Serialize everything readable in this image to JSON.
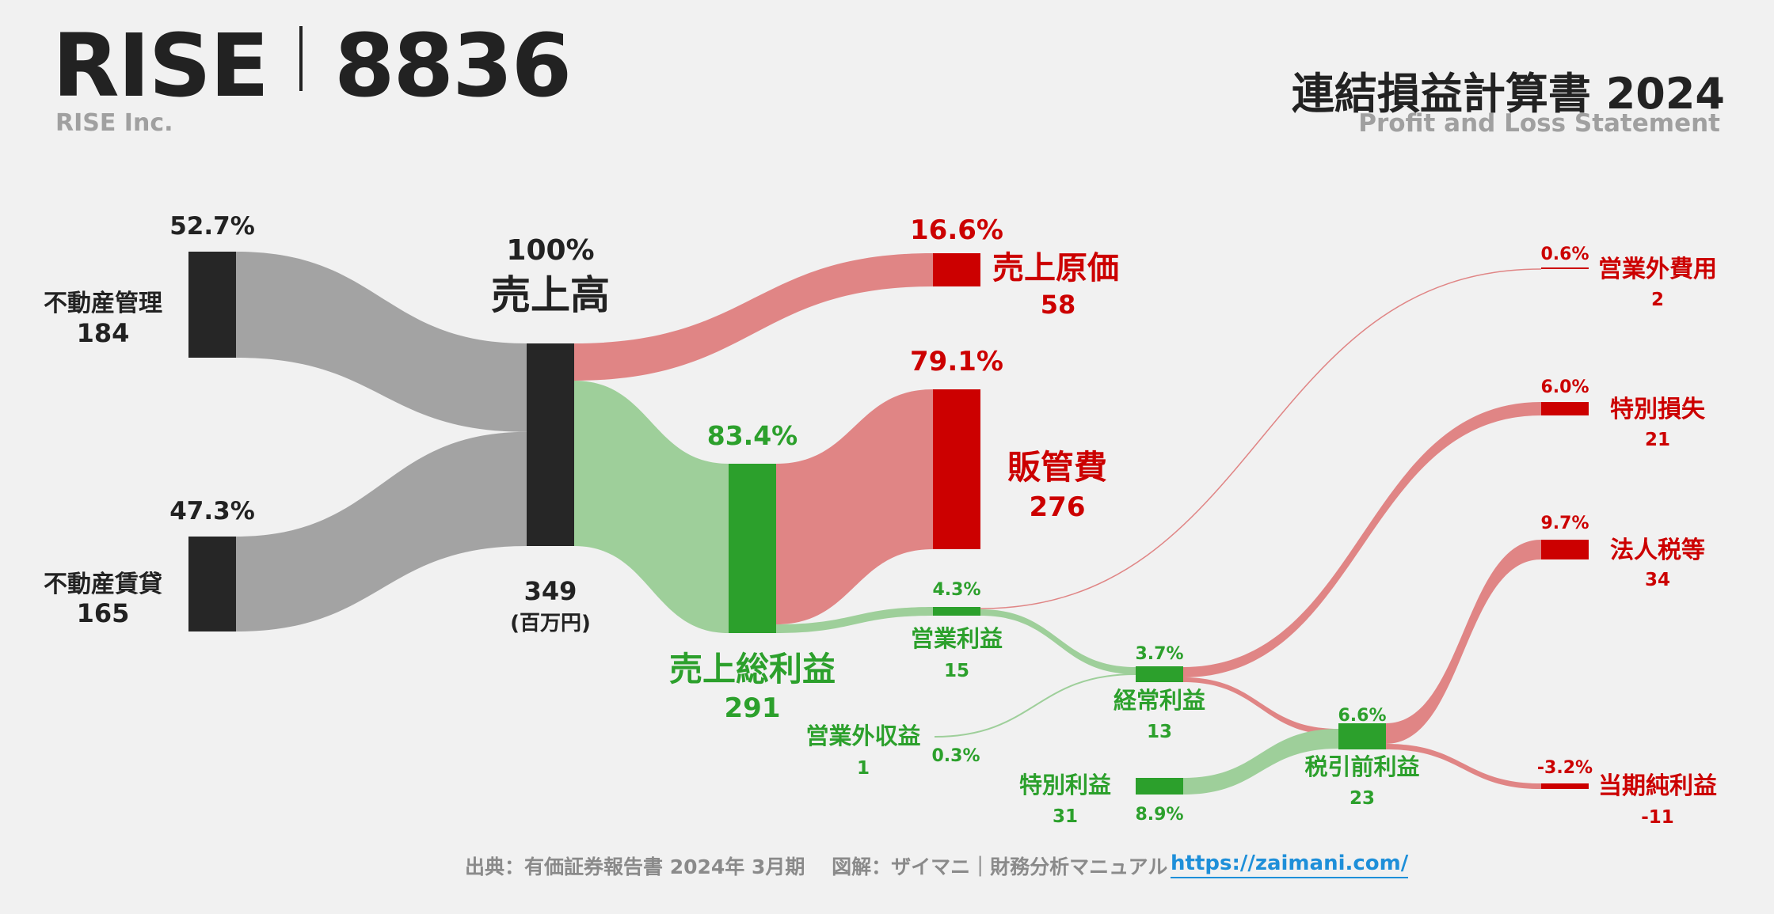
{
  "header": {
    "ticker": "RISE",
    "code": "8836",
    "company": "RISE Inc.",
    "title": "連結損益計算書 2024",
    "subtitle": "Profit and Loss Statement"
  },
  "footer": {
    "source": "出典：有価証券報告書 2024年 3月期　 図解：ザイマニ｜財務分析マニュアル",
    "link": "https://zaimani.com/"
  },
  "colors": {
    "black": "#262626",
    "gray_flow": "#a3a3a3",
    "green": "#2ca02c",
    "green_flow": "#9ecf9a",
    "red": "#cc0000",
    "red_flow": "#e08585",
    "text_dark": "#222222"
  },
  "chart_data": {
    "type": "sankey",
    "unit": "(百万円)",
    "nodes": [
      {
        "id": "mgmt",
        "name": "不動産管理",
        "value": "184",
        "pct": "52.7%"
      },
      {
        "id": "lease",
        "name": "不動産賃貸",
        "value": "165",
        "pct": "47.3%"
      },
      {
        "id": "rev",
        "name": "売上高",
        "value": "349",
        "pct": "100%"
      },
      {
        "id": "cogs",
        "name": "売上原価",
        "value": "58",
        "pct": "16.6%"
      },
      {
        "id": "gp",
        "name": "売上総利益",
        "value": "291",
        "pct": "83.4%"
      },
      {
        "id": "sga",
        "name": "販管費",
        "value": "276",
        "pct": "79.1%"
      },
      {
        "id": "op",
        "name": "営業利益",
        "value": "15",
        "pct": "4.3%"
      },
      {
        "id": "nonop_inc",
        "name": "営業外収益",
        "value": "1",
        "pct": "0.3%"
      },
      {
        "id": "nonop_exp",
        "name": "営業外費用",
        "value": "2",
        "pct": "0.6%"
      },
      {
        "id": "ord",
        "name": "経常利益",
        "value": "13",
        "pct": "3.7%"
      },
      {
        "id": "ext_gain",
        "name": "特別利益",
        "value": "31",
        "pct": "8.9%"
      },
      {
        "id": "ext_loss",
        "name": "特別損失",
        "value": "21",
        "pct": "6.0%"
      },
      {
        "id": "pretax",
        "name": "税引前利益",
        "value": "23",
        "pct": "6.6%"
      },
      {
        "id": "tax",
        "name": "法人税等",
        "value": "34",
        "pct": "9.7%"
      },
      {
        "id": "net",
        "name": "当期純利益",
        "value": "-11",
        "pct": "-3.2%"
      }
    ],
    "links": [
      {
        "source": "mgmt",
        "target": "rev",
        "value": 184
      },
      {
        "source": "lease",
        "target": "rev",
        "value": 165
      },
      {
        "source": "rev",
        "target": "cogs",
        "value": 58
      },
      {
        "source": "rev",
        "target": "gp",
        "value": 291
      },
      {
        "source": "gp",
        "target": "sga",
        "value": 276
      },
      {
        "source": "gp",
        "target": "op",
        "value": 15
      },
      {
        "source": "op",
        "target": "nonop_exp",
        "value": 2
      },
      {
        "source": "op",
        "target": "ord",
        "value": 13
      },
      {
        "source": "nonop_inc",
        "target": "ord",
        "value": 1
      },
      {
        "source": "ord",
        "target": "ext_loss",
        "value": 21
      },
      {
        "source": "ord",
        "target": "pretax",
        "value": 13
      },
      {
        "source": "ext_gain",
        "target": "pretax",
        "value": 31
      },
      {
        "source": "pretax",
        "target": "tax",
        "value": 34
      },
      {
        "source": "pretax",
        "target": "net",
        "value": 11
      }
    ]
  }
}
